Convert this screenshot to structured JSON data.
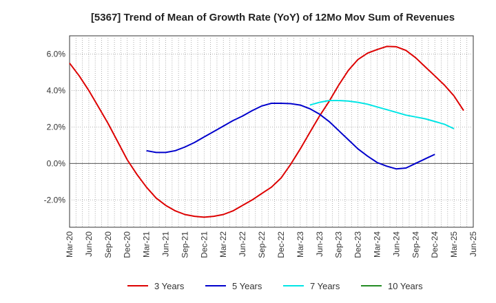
{
  "chart_data": {
    "type": "line",
    "title": "[5367]  Trend of Mean of Growth Rate (YoY) of 12Mo Mov Sum of Revenues",
    "xlabel": "",
    "ylabel": "",
    "ylim": [
      -3.5,
      7.0
    ],
    "y_ticks": [
      -2.0,
      0.0,
      2.0,
      4.0,
      6.0
    ],
    "y_tick_labels": [
      "-2.0%",
      "0.0%",
      "2.0%",
      "4.0%",
      "6.0%"
    ],
    "x_tick_labels": [
      "Mar-20",
      "Jun-20",
      "Sep-20",
      "Dec-20",
      "Mar-21",
      "Jun-21",
      "Sep-21",
      "Dec-21",
      "Mar-22",
      "Jun-22",
      "Sep-22",
      "Dec-22",
      "Mar-23",
      "Jun-23",
      "Sep-23",
      "Dec-23",
      "Mar-24",
      "Jun-24",
      "Sep-24",
      "Dec-24",
      "Mar-25",
      "Jun-25"
    ],
    "grid": true,
    "legend_position": "bottom",
    "series": [
      {
        "name": "3 Years",
        "color": "#dd0000",
        "start_index": 0,
        "values": [
          5.5,
          4.8,
          4.0,
          3.1,
          2.2,
          1.2,
          0.2,
          -0.6,
          -1.3,
          -1.9,
          -2.3,
          -2.6,
          -2.8,
          -2.9,
          -2.95,
          -2.9,
          -2.8,
          -2.6,
          -2.3,
          -2.0,
          -1.65,
          -1.3,
          -0.8,
          -0.05,
          0.8,
          1.7,
          2.6,
          3.4,
          4.3,
          5.1,
          5.7,
          6.05,
          6.25,
          6.42,
          6.4,
          6.2,
          5.8,
          5.3,
          4.8,
          4.3,
          3.7,
          2.9
        ]
      },
      {
        "name": "5 Years",
        "color": "#0000cc",
        "start_index": 8,
        "values": [
          0.7,
          0.6,
          0.6,
          0.7,
          0.9,
          1.15,
          1.45,
          1.75,
          2.05,
          2.35,
          2.6,
          2.9,
          3.15,
          3.3,
          3.3,
          3.28,
          3.2,
          3.0,
          2.7,
          2.3,
          1.8,
          1.3,
          0.8,
          0.4,
          0.05,
          -0.15,
          -0.3,
          -0.25,
          0.0,
          0.25,
          0.5
        ]
      },
      {
        "name": "7 Years",
        "color": "#00e5e5",
        "start_index": 25,
        "values": [
          3.2,
          3.35,
          3.45,
          3.45,
          3.42,
          3.35,
          3.25,
          3.1,
          2.95,
          2.8,
          2.65,
          2.55,
          2.45,
          2.3,
          2.15,
          1.9
        ]
      },
      {
        "name": "10 Years",
        "color": "#228b22",
        "start_index": 0,
        "values": []
      }
    ]
  }
}
